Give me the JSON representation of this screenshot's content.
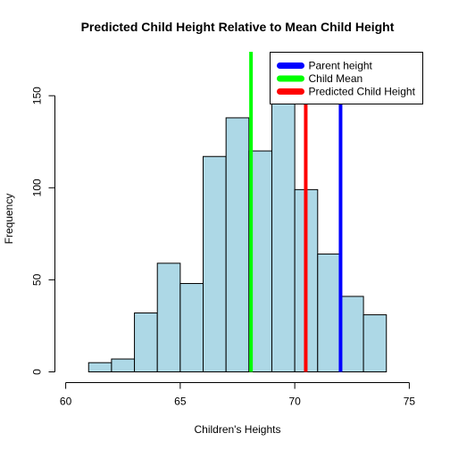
{
  "chart_data": {
    "type": "bar",
    "title": "Predicted Child Height Relative to Mean Child Height",
    "xlabel": "Children's Heights",
    "ylabel": "Frequency",
    "xlim": [
      60,
      75
    ],
    "ylim": [
      0,
      150
    ],
    "x_ticks": [
      60,
      65,
      70,
      75
    ],
    "y_ticks": [
      0,
      50,
      100,
      150
    ],
    "bins": [
      {
        "start": 61,
        "end": 62,
        "count": 5
      },
      {
        "start": 62,
        "end": 63,
        "count": 7
      },
      {
        "start": 63,
        "end": 64,
        "count": 32
      },
      {
        "start": 64,
        "end": 65,
        "count": 59
      },
      {
        "start": 65,
        "end": 66,
        "count": 48
      },
      {
        "start": 66,
        "end": 67,
        "count": 117
      },
      {
        "start": 67,
        "end": 68,
        "count": 138
      },
      {
        "start": 68,
        "end": 69,
        "count": 120
      },
      {
        "start": 69,
        "end": 70,
        "count": 167
      },
      {
        "start": 70,
        "end": 71,
        "count": 99
      },
      {
        "start": 71,
        "end": 72,
        "count": 64
      },
      {
        "start": 72,
        "end": 73,
        "count": 41
      },
      {
        "start": 73,
        "end": 74,
        "count": 31
      }
    ],
    "bar_fill": "#add8e6",
    "bar_stroke": "#000000",
    "vlines": [
      {
        "name": "Parent height",
        "x": 72.0,
        "color": "#0000ff"
      },
      {
        "name": "Child Mean",
        "x": 68.09,
        "color": "#00ff00"
      },
      {
        "name": "Predicted Child Height",
        "x": 70.48,
        "color": "#ff0000"
      }
    ],
    "legend_position": "top-right",
    "grid": false
  }
}
